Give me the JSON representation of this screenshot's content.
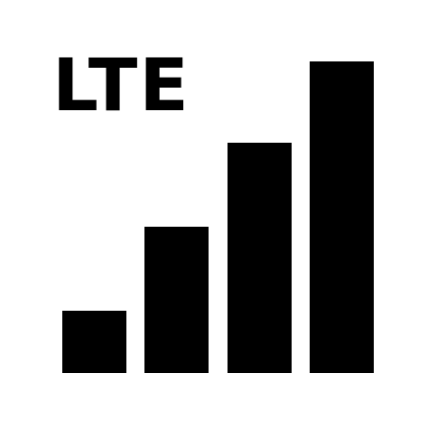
{
  "network_type": "LTE",
  "signal": {
    "bars_total": 4,
    "bars_active": 4,
    "bar_levels": [
      0.2,
      0.47,
      0.74,
      1.0
    ]
  },
  "colors": {
    "foreground": "#000000",
    "background": "#ffffff"
  },
  "icon": "cellular-signal-lte-icon"
}
